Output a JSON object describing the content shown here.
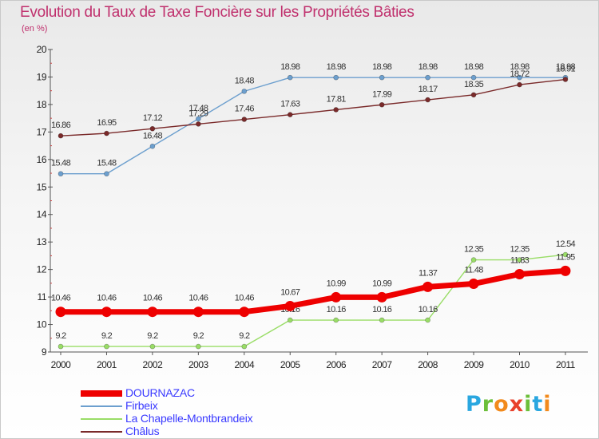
{
  "title": "Evolution du Taux de Taxe Foncière sur les Propriétés Bâties",
  "unit_label": "(en %)",
  "logo": {
    "text": "Proxiti",
    "letters": [
      "P",
      "r",
      "o",
      "x",
      "i",
      "t",
      "i"
    ],
    "colors": [
      "#2aa7e0",
      "#6cbf3a",
      "#f28a1c",
      "#e8412c",
      "#6cbf3a",
      "#2aa7e0",
      "#f28a1c"
    ]
  },
  "chart_data": {
    "type": "line",
    "title": "Evolution du Taux de Taxe Foncière sur les Propriétés Bâties",
    "ylabel": "(en %)",
    "xlabel": "",
    "ylim": [
      9,
      20
    ],
    "yticks": [
      9,
      10,
      11,
      12,
      13,
      14,
      15,
      16,
      17,
      18,
      19,
      20
    ],
    "categories": [
      "2000",
      "2001",
      "2002",
      "2003",
      "2004",
      "2005",
      "2006",
      "2007",
      "2008",
      "2009",
      "2010",
      "2011"
    ],
    "grid": false,
    "legend_position": "bottom-left",
    "series": [
      {
        "name": "DOURNAZAC",
        "color": "#ee0000",
        "values": [
          10.46,
          10.46,
          10.46,
          10.46,
          10.46,
          10.67,
          10.99,
          10.99,
          11.37,
          11.48,
          11.83,
          11.95
        ]
      },
      {
        "name": "Firbeix",
        "color": "#6c9fce",
        "values": [
          15.48,
          15.48,
          16.48,
          17.48,
          18.48,
          18.98,
          18.98,
          18.98,
          18.98,
          18.98,
          18.98,
          18.98
        ]
      },
      {
        "name": "La Chapelle-Montbrandeix",
        "color": "#99dd66",
        "values": [
          9.2,
          9.2,
          9.2,
          9.2,
          9.2,
          10.16,
          10.16,
          10.16,
          10.16,
          12.35,
          12.35,
          12.54
        ]
      },
      {
        "name": "Châlus",
        "color": "#7a2a2a",
        "values": [
          16.86,
          16.95,
          17.12,
          17.29,
          17.46,
          17.63,
          17.81,
          17.99,
          18.17,
          18.35,
          18.72,
          18.91
        ]
      }
    ]
  }
}
